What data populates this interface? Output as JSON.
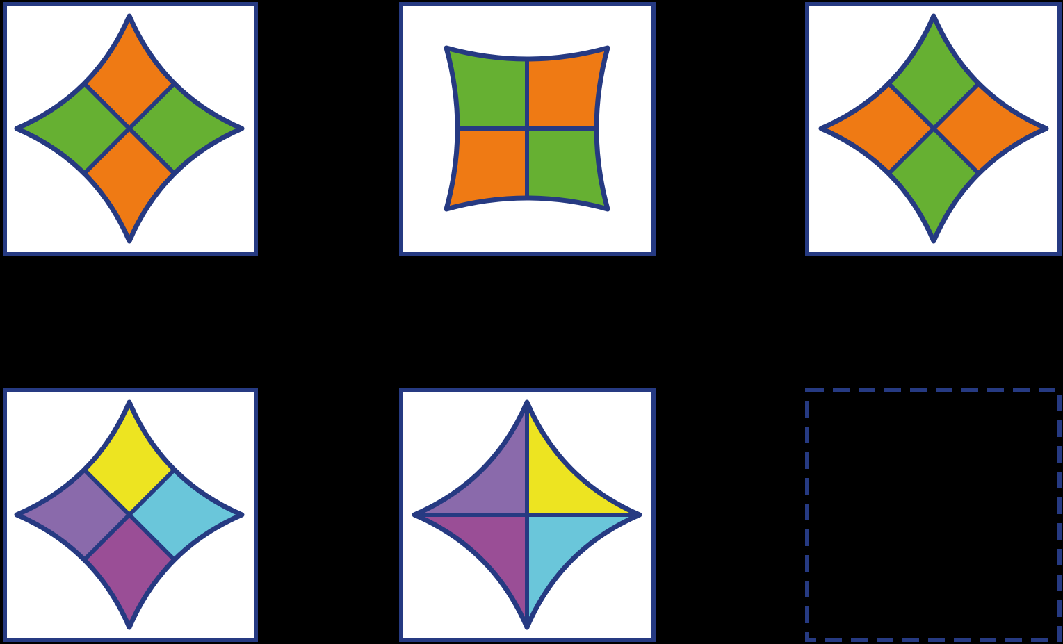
{
  "colors": {
    "background": "#000000",
    "frame": "#263a82",
    "panel": "#ffffff",
    "orange": "#ef7a14",
    "green": "#66b032",
    "yellow": "#ede421",
    "cyan": "#6ac6da",
    "purple": "#8a6aab",
    "magenta": "#9a4e96"
  },
  "puzzle": {
    "rows": [
      [
        {
          "shape": "star",
          "split": "diagonal",
          "quadrants": {
            "top": "orange",
            "right": "green",
            "bottom": "orange",
            "left": "green"
          }
        },
        {
          "shape": "pillow",
          "split": "cross",
          "quadrants": {
            "top-left": "green",
            "top-right": "orange",
            "bottom-right": "green",
            "bottom-left": "orange"
          }
        },
        {
          "shape": "star",
          "split": "diagonal",
          "quadrants": {
            "top": "green",
            "right": "orange",
            "bottom": "green",
            "left": "orange"
          }
        }
      ],
      [
        {
          "shape": "star",
          "split": "diagonal",
          "quadrants": {
            "top": "yellow",
            "right": "cyan",
            "bottom": "magenta",
            "left": "purple"
          }
        },
        {
          "shape": "star",
          "split": "cross",
          "quadrants": {
            "top-left": "purple",
            "top-right": "yellow",
            "bottom-right": "cyan",
            "bottom-left": "magenta"
          }
        },
        {
          "shape": "empty",
          "split": "none",
          "quadrants": {}
        }
      ]
    ]
  }
}
